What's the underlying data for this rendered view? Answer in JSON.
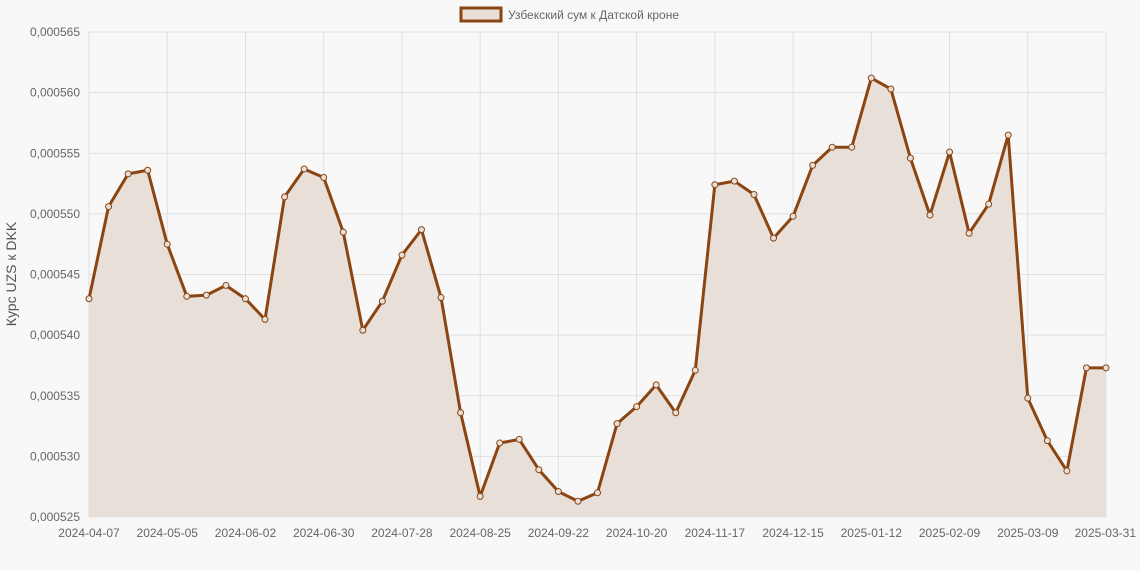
{
  "chart_data": {
    "type": "line",
    "series": [
      {
        "name": "Узбекский сум к Датской кроне",
        "line_color": "#8b4513",
        "fill_color": "#e8e0d8",
        "values": [
          0.000543,
          0.0005506,
          0.0005533,
          0.0005536,
          0.0005475,
          0.0005432,
          0.0005433,
          0.0005441,
          0.000543,
          0.0005413,
          0.0005514,
          0.0005537,
          0.000553,
          0.0005485,
          0.0005404,
          0.0005428,
          0.0005466,
          0.0005487,
          0.0005431,
          0.0005336,
          0.0005267,
          0.0005311,
          0.0005314,
          0.0005289,
          0.0005271,
          0.0005263,
          0.000527,
          0.0005327,
          0.0005341,
          0.0005359,
          0.0005336,
          0.0005371,
          0.0005524,
          0.0005527,
          0.0005516,
          0.000548,
          0.0005498,
          0.000554,
          0.0005555,
          0.0005555,
          0.0005612,
          0.0005603,
          0.0005546,
          0.0005499,
          0.0005551,
          0.0005484,
          0.0005508,
          0.0005565,
          0.0005348,
          0.0005313,
          0.0005288,
          0.0005373,
          0.0005373
        ]
      }
    ],
    "x_tick_labels": [
      "2024-04-07",
      "2024-05-05",
      "2024-06-02",
      "2024-06-30",
      "2024-07-28",
      "2024-08-25",
      "2024-09-22",
      "2024-10-20",
      "2024-11-17",
      "2024-12-15",
      "2025-01-12",
      "2025-02-09",
      "2025-03-09",
      "2025-03-31"
    ],
    "y_tick_labels": [
      "0,000565",
      "0,000560",
      "0,000555",
      "0,000550",
      "0,000545",
      "0,000540",
      "0,000535",
      "0,000530",
      "0,000525"
    ],
    "ylim": [
      0.000525,
      0.000565
    ],
    "ylabel": "Курс UZS к DKK",
    "xlabel": "",
    "legend_position": "top",
    "grid": true
  }
}
